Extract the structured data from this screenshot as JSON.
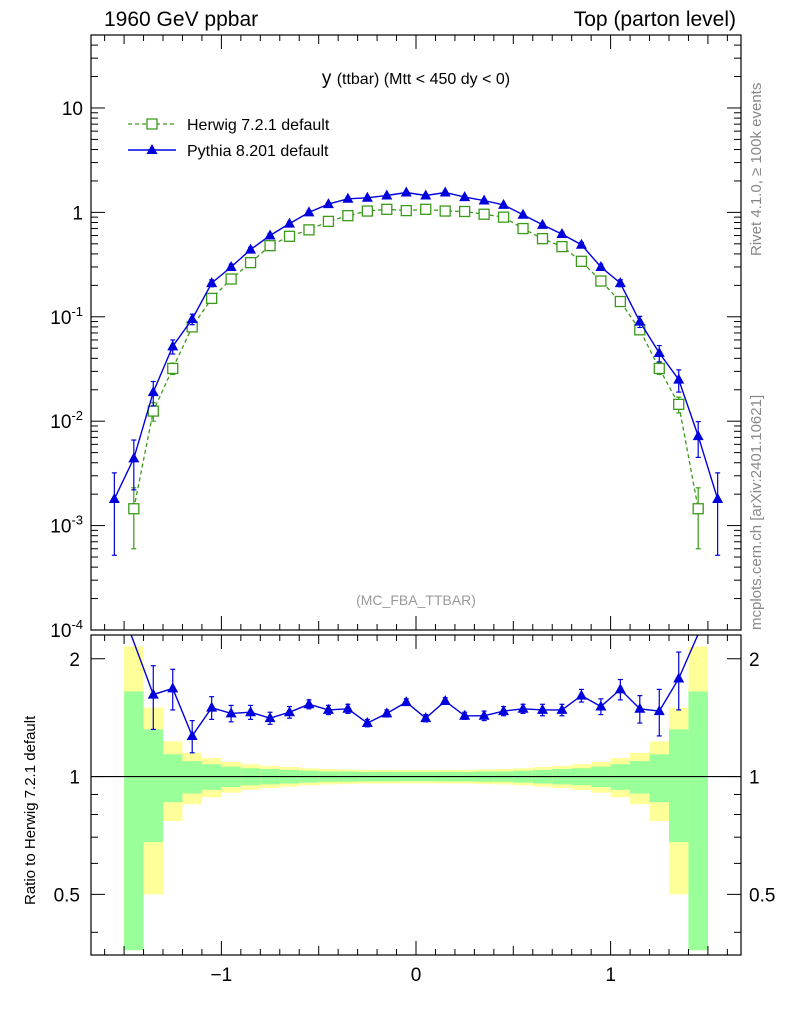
{
  "header": {
    "left": "1960 GeV ppbar",
    "right": "Top (parton level)"
  },
  "side_labels": {
    "rivet": "Rivet 4.1.0, ≥ 100k events",
    "mcplots": "mcplots.cern.ch [arXiv:2401.10621]"
  },
  "chart_data": {
    "type": "line",
    "title": "y (ttbar) (Mtt < 450 dy < 0)",
    "title_var": "y",
    "title_rest": "(ttbar) (Mtt < 450 dy < 0)",
    "watermark": "(MC_FBA_TTBAR)",
    "xlim": [
      -1.67,
      1.67
    ],
    "main": {
      "yscale": "log",
      "ylim": [
        0.0001,
        50
      ],
      "ytick_labels": [
        {
          "base": "10",
          "exp": "-4",
          "value": 0.0001
        },
        {
          "base": "10",
          "exp": "-3",
          "value": 0.001
        },
        {
          "base": "10",
          "exp": "-2",
          "value": 0.01
        },
        {
          "base": "10",
          "exp": "-1",
          "value": 0.1
        },
        {
          "base": "1",
          "exp": "",
          "value": 1
        },
        {
          "base": "10",
          "exp": "",
          "value": 10
        }
      ]
    },
    "ratio": {
      "ylabel": "Ratio to Herwig 7.2.1 default",
      "ylim": [
        0.35,
        2.3
      ],
      "ytick_labels": [
        "0.5",
        "1",
        "2"
      ],
      "yticks": [
        0.5,
        1,
        2
      ]
    },
    "xtick_labels": [
      "−1",
      "0",
      "1"
    ],
    "xticks": [
      -1,
      0,
      1
    ],
    "legend": {
      "position": "top-left"
    },
    "bin_edges": [
      -1.5,
      -1.4,
      -1.3,
      -1.2,
      -1.1,
      -1.0,
      -0.9,
      -0.8,
      -0.7,
      -0.6,
      -0.5,
      -0.4,
      -0.3,
      -0.2,
      -0.1,
      0.0,
      0.1,
      0.2,
      0.3,
      0.4,
      0.5,
      0.6,
      0.7,
      0.8,
      0.9,
      1.0,
      1.1,
      1.2,
      1.3,
      1.4,
      1.5
    ],
    "band_inner": [
      0.65,
      0.32,
      0.14,
      0.095,
      0.075,
      0.06,
      0.05,
      0.045,
      0.04,
      0.035,
      0.03,
      0.03,
      0.028,
      0.028,
      0.027,
      0.027,
      0.028,
      0.028,
      0.03,
      0.03,
      0.035,
      0.04,
      0.045,
      0.05,
      0.06,
      0.075,
      0.095,
      0.14,
      0.32,
      0.65
    ],
    "band_outer": [
      1.15,
      0.5,
      0.23,
      0.15,
      0.115,
      0.09,
      0.075,
      0.065,
      0.058,
      0.05,
      0.045,
      0.043,
      0.04,
      0.04,
      0.039,
      0.039,
      0.04,
      0.04,
      0.043,
      0.045,
      0.05,
      0.058,
      0.065,
      0.075,
      0.09,
      0.115,
      0.15,
      0.23,
      0.5,
      1.15
    ],
    "series": [
      {
        "name": "Herwig 7.2.1 default",
        "color": "#3a9a19",
        "marker": "open-square",
        "linestyle": "dashed",
        "x": [
          -1.45,
          -1.35,
          -1.25,
          -1.15,
          -1.05,
          -0.95,
          -0.85,
          -0.75,
          -0.65,
          -0.55,
          -0.45,
          -0.35,
          -0.25,
          -0.15,
          -0.05,
          0.05,
          0.15,
          0.25,
          0.35,
          0.45,
          0.55,
          0.65,
          0.75,
          0.85,
          0.95,
          1.05,
          1.15,
          1.25,
          1.35,
          1.45
        ],
        "y": [
          0.00145,
          0.0125,
          0.032,
          0.08,
          0.15,
          0.23,
          0.33,
          0.48,
          0.59,
          0.68,
          0.82,
          0.93,
          1.03,
          1.07,
          1.04,
          1.07,
          1.03,
          1.02,
          0.96,
          0.9,
          0.7,
          0.56,
          0.47,
          0.34,
          0.22,
          0.14,
          0.075,
          0.032,
          0.0145,
          0.00145
        ],
        "err_low": [
          0.00085,
          0.0025,
          0.004,
          0.006,
          0.008,
          0.01,
          0.012,
          0.014,
          0.016,
          0.017,
          0.019,
          0.02,
          0.021,
          0.021,
          0.021,
          0.021,
          0.021,
          0.021,
          0.02,
          0.019,
          0.017,
          0.016,
          0.014,
          0.012,
          0.01,
          0.008,
          0.006,
          0.004,
          0.0025,
          0.00085
        ],
        "err_high": [
          0.00085,
          0.0025,
          0.004,
          0.006,
          0.008,
          0.01,
          0.012,
          0.014,
          0.016,
          0.017,
          0.019,
          0.02,
          0.021,
          0.021,
          0.021,
          0.021,
          0.021,
          0.021,
          0.02,
          0.019,
          0.017,
          0.016,
          0.014,
          0.012,
          0.01,
          0.008,
          0.006,
          0.004,
          0.0025,
          0.00085
        ]
      },
      {
        "name": "Pythia 8.201 default",
        "color": "#0000dd",
        "marker": "filled-triangle",
        "linestyle": "solid",
        "x": [
          -1.55,
          -1.45,
          -1.35,
          -1.25,
          -1.15,
          -1.05,
          -0.95,
          -0.85,
          -0.75,
          -0.65,
          -0.55,
          -0.45,
          -0.35,
          -0.25,
          -0.15,
          -0.05,
          0.05,
          0.15,
          0.25,
          0.35,
          0.45,
          0.55,
          0.65,
          0.75,
          0.85,
          0.95,
          1.05,
          1.15,
          1.25,
          1.35,
          1.45,
          1.55
        ],
        "y": [
          0.0018,
          0.0044,
          0.019,
          0.052,
          0.095,
          0.21,
          0.3,
          0.44,
          0.6,
          0.78,
          1.0,
          1.2,
          1.35,
          1.38,
          1.45,
          1.55,
          1.45,
          1.55,
          1.4,
          1.3,
          1.18,
          0.95,
          0.76,
          0.62,
          0.49,
          0.3,
          0.21,
          0.09,
          0.045,
          0.025,
          0.0072,
          0.0018
        ],
        "err_low": [
          0.00128,
          0.0022,
          0.005,
          0.008,
          0.011,
          0.016,
          0.02,
          0.024,
          0.028,
          0.032,
          0.036,
          0.04,
          0.042,
          0.042,
          0.043,
          0.045,
          0.043,
          0.045,
          0.042,
          0.041,
          0.039,
          0.035,
          0.031,
          0.028,
          0.025,
          0.02,
          0.016,
          0.011,
          0.008,
          0.006,
          0.0027,
          0.00128
        ],
        "err_high": [
          0.0014,
          0.0022,
          0.005,
          0.008,
          0.011,
          0.016,
          0.02,
          0.024,
          0.028,
          0.032,
          0.036,
          0.04,
          0.042,
          0.042,
          0.043,
          0.045,
          0.043,
          0.045,
          0.042,
          0.041,
          0.039,
          0.035,
          0.031,
          0.028,
          0.025,
          0.02,
          0.016,
          0.011,
          0.008,
          0.006,
          0.0027,
          0.0014
        ]
      }
    ],
    "ratio_series": {
      "name": "Pythia 8.201 default / Herwig 7.2.1 default",
      "x": [
        -1.35,
        -1.25,
        -1.15,
        -1.05,
        -0.95,
        -0.85,
        -0.75,
        -0.65,
        -0.55,
        -0.45,
        -0.35,
        -0.25,
        -0.15,
        -0.05,
        0.05,
        0.15,
        0.25,
        0.35,
        0.45,
        0.55,
        0.65,
        0.75,
        0.85,
        0.95,
        1.05,
        1.15,
        1.25,
        1.35
      ],
      "y": [
        1.62,
        1.68,
        1.27,
        1.5,
        1.45,
        1.46,
        1.41,
        1.46,
        1.53,
        1.48,
        1.49,
        1.37,
        1.45,
        1.55,
        1.41,
        1.56,
        1.43,
        1.43,
        1.47,
        1.49,
        1.48,
        1.48,
        1.61,
        1.51,
        1.67,
        1.49,
        1.47,
        1.78
      ],
      "err": [
        0.3,
        0.2,
        0.12,
        0.1,
        0.07,
        0.06,
        0.05,
        0.05,
        0.04,
        0.04,
        0.04,
        0.03,
        0.03,
        0.03,
        0.03,
        0.03,
        0.03,
        0.04,
        0.04,
        0.04,
        0.05,
        0.05,
        0.06,
        0.07,
        0.1,
        0.12,
        0.2,
        0.3
      ],
      "edge_y_left": 3.0,
      "edge_y_right": 3.0
    }
  }
}
